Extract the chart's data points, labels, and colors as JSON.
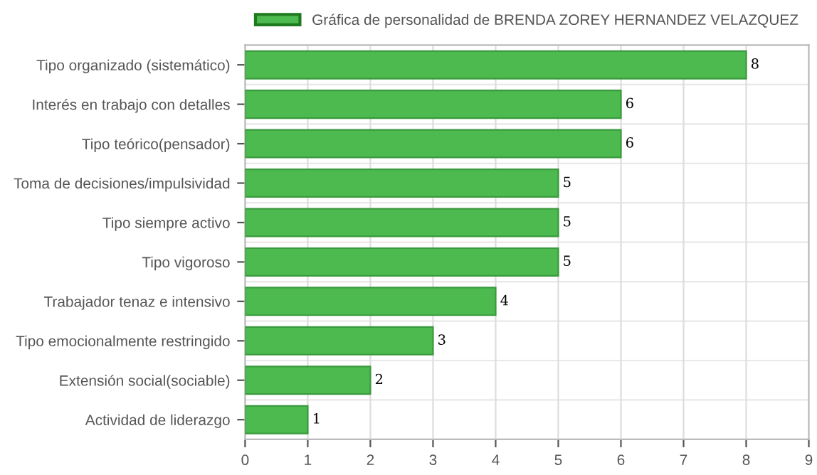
{
  "chart_data": {
    "type": "bar",
    "orientation": "horizontal",
    "categories": [
      "Tipo organizado (sistemático)",
      "Interés en trabajo con detalles",
      "Tipo teórico(pensador)",
      "Toma de decisiones/impulsividad",
      "Tipo siempre activo",
      "Tipo vigoroso",
      "Trabajador tenaz e intensivo",
      "Tipo emocionalmente restringido",
      "Extensión social(sociable)",
      "Actividad de liderazgo"
    ],
    "series": [
      {
        "name": "Gráfica de personalidad de BRENDA ZOREY HERNANDEZ VELAZQUEZ",
        "color": "#4cba4f",
        "values": [
          8,
          6,
          6,
          5,
          5,
          5,
          4,
          3,
          2,
          1
        ]
      }
    ],
    "xlim": [
      0,
      9
    ],
    "xticks": [
      0,
      1,
      2,
      3,
      4,
      5,
      6,
      7,
      8,
      9
    ],
    "grid": true,
    "legend": "top",
    "data_labels": true
  }
}
